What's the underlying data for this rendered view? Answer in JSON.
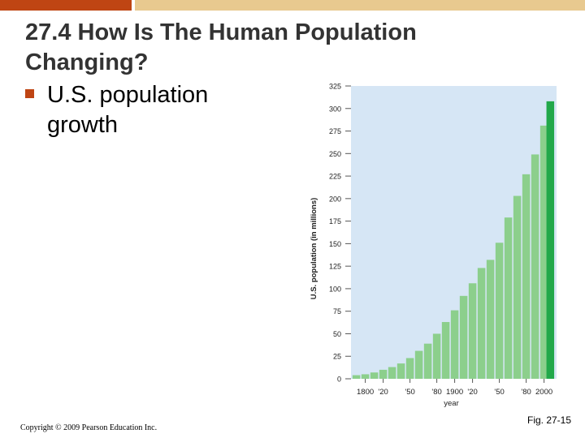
{
  "colors": {
    "bar_left": "#bf4513",
    "bar_right": "#e8c98f",
    "bullet": "#bf4513",
    "plot_bg": "#d6e6f5",
    "bar": "#8ccf8c",
    "bar_highlight": "#22a84a"
  },
  "slide": {
    "title": "27.4 How Is The Human Population Changing?",
    "bullet": "U.S. population growth",
    "copyright": "Copyright © 2009 Pearson Education Inc.",
    "figure_label": "Fig. 27-15"
  },
  "chart_data": {
    "type": "bar",
    "xlabel": "year",
    "ylabel": "U.S. population (in millions)",
    "ylim": [
      0,
      325
    ],
    "yticks": [
      0,
      25,
      50,
      75,
      100,
      125,
      150,
      175,
      200,
      225,
      250,
      275,
      300,
      325
    ],
    "xtick_labels": [
      "1800",
      "'20",
      "'50",
      "'80",
      "1900",
      "'20",
      "'50",
      "'80",
      "2000"
    ],
    "xtick_positions": [
      1800,
      1820,
      1850,
      1880,
      1900,
      1920,
      1950,
      1980,
      2000
    ],
    "grid": false,
    "categories": [
      1790,
      1800,
      1810,
      1820,
      1830,
      1840,
      1850,
      1860,
      1870,
      1880,
      1890,
      1900,
      1910,
      1920,
      1930,
      1940,
      1950,
      1960,
      1970,
      1980,
      1990,
      2000,
      2007
    ],
    "values": [
      4,
      5,
      7,
      10,
      13,
      17,
      23,
      31,
      39,
      50,
      63,
      76,
      92,
      106,
      123,
      132,
      151,
      179,
      203,
      227,
      249,
      281,
      308
    ],
    "highlight_index": 22
  }
}
